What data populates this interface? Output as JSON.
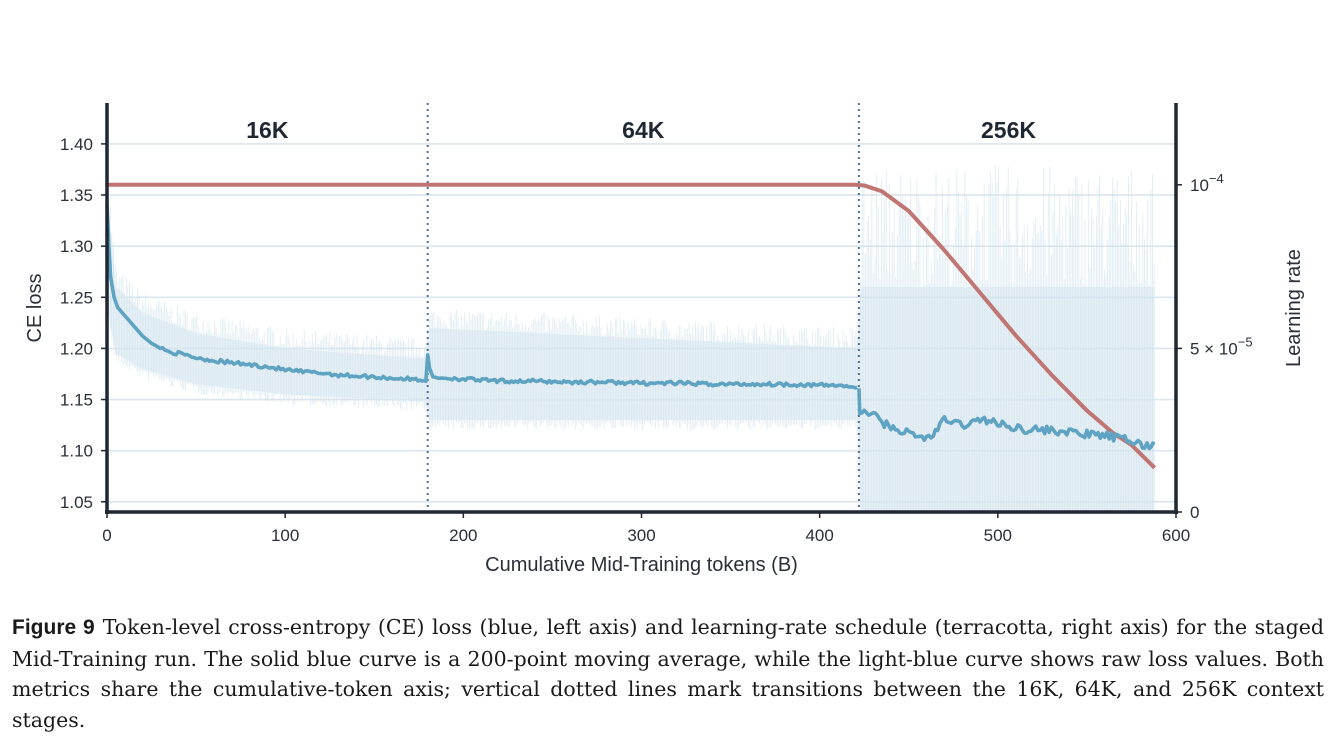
{
  "chart_data": {
    "type": "line",
    "xlabel": "Cumulative Mid-Training tokens (B)",
    "ylabel": "CE loss",
    "y2label": "Learning rate",
    "xlim": [
      0,
      600
    ],
    "ylim": [
      1.04,
      1.44
    ],
    "y2lim": [
      0,
      0.000125
    ],
    "x_ticks": [
      "0",
      "100",
      "200",
      "300",
      "400",
      "500",
      "600"
    ],
    "y_ticks": [
      "1.05",
      "1.10",
      "1.15",
      "1.20",
      "1.25",
      "1.30",
      "1.35",
      "1.40"
    ],
    "y2_ticks": [
      {
        "value": 0,
        "base": "0",
        "exp": ""
      },
      {
        "value": 5e-05,
        "base": "5 × 10",
        "exp": "−5"
      },
      {
        "value": 0.0001,
        "base": "10",
        "exp": "−4"
      }
    ],
    "grid": "horizontal",
    "stage_boundaries": [
      180,
      422
    ],
    "stages": [
      {
        "label": "16K",
        "center": 90
      },
      {
        "label": "64K",
        "center": 301
      },
      {
        "label": "256K",
        "center": 506
      }
    ],
    "series": [
      {
        "name": "CE loss (moving average)",
        "axis": "left",
        "color": "#5fa3c3",
        "points": [
          [
            0,
            1.34
          ],
          [
            1,
            1.3
          ],
          [
            2,
            1.27
          ],
          [
            4,
            1.25
          ],
          [
            6,
            1.24
          ],
          [
            10,
            1.232
          ],
          [
            15,
            1.222
          ],
          [
            20,
            1.212
          ],
          [
            25,
            1.205
          ],
          [
            30,
            1.2
          ],
          [
            35,
            1.197
          ],
          [
            40,
            1.195
          ],
          [
            50,
            1.191
          ],
          [
            60,
            1.188
          ],
          [
            70,
            1.186
          ],
          [
            80,
            1.184
          ],
          [
            90,
            1.182
          ],
          [
            100,
            1.179
          ],
          [
            110,
            1.177
          ],
          [
            120,
            1.176
          ],
          [
            130,
            1.174
          ],
          [
            140,
            1.173
          ],
          [
            150,
            1.172
          ],
          [
            160,
            1.171
          ],
          [
            170,
            1.17
          ],
          [
            179,
            1.169
          ],
          [
            180,
            1.192
          ],
          [
            181,
            1.18
          ],
          [
            183,
            1.172
          ],
          [
            190,
            1.171
          ],
          [
            200,
            1.17
          ],
          [
            220,
            1.168
          ],
          [
            240,
            1.168
          ],
          [
            260,
            1.167
          ],
          [
            280,
            1.167
          ],
          [
            300,
            1.166
          ],
          [
            320,
            1.166
          ],
          [
            340,
            1.165
          ],
          [
            360,
            1.165
          ],
          [
            380,
            1.165
          ],
          [
            400,
            1.164
          ],
          [
            410,
            1.164
          ],
          [
            420,
            1.162
          ],
          [
            422,
            1.16
          ],
          [
            422.5,
            1.135
          ],
          [
            425,
            1.14
          ],
          [
            430,
            1.135
          ],
          [
            435,
            1.128
          ],
          [
            440,
            1.123
          ],
          [
            445,
            1.12
          ],
          [
            450,
            1.117
          ],
          [
            455,
            1.114
          ],
          [
            460,
            1.112
          ],
          [
            465,
            1.118
          ],
          [
            470,
            1.13
          ],
          [
            475,
            1.128
          ],
          [
            480,
            1.125
          ],
          [
            485,
            1.127
          ],
          [
            490,
            1.13
          ],
          [
            495,
            1.13
          ],
          [
            500,
            1.126
          ],
          [
            505,
            1.124
          ],
          [
            510,
            1.123
          ],
          [
            515,
            1.121
          ],
          [
            520,
            1.121
          ],
          [
            525,
            1.12
          ],
          [
            530,
            1.12
          ],
          [
            535,
            1.119
          ],
          [
            540,
            1.118
          ],
          [
            545,
            1.117
          ],
          [
            550,
            1.116
          ],
          [
            555,
            1.115
          ],
          [
            560,
            1.115
          ],
          [
            565,
            1.113
          ],
          [
            570,
            1.111
          ],
          [
            575,
            1.11
          ],
          [
            580,
            1.106
          ],
          [
            585,
            1.104
          ],
          [
            588,
            1.106
          ]
        ]
      },
      {
        "name": "CE loss (raw)",
        "axis": "left",
        "color": "#dce9f1",
        "band": [
          {
            "x": 0,
            "low": 1.24,
            "high": 1.36
          },
          {
            "x": 5,
            "low": 1.195,
            "high": 1.26
          },
          {
            "x": 20,
            "low": 1.18,
            "high": 1.235
          },
          {
            "x": 50,
            "low": 1.165,
            "high": 1.215
          },
          {
            "x": 100,
            "low": 1.155,
            "high": 1.2
          },
          {
            "x": 179,
            "low": 1.148,
            "high": 1.19
          },
          {
            "x": 181,
            "low": 1.13,
            "high": 1.22
          },
          {
            "x": 300,
            "low": 1.13,
            "high": 1.21
          },
          {
            "x": 421,
            "low": 1.13,
            "high": 1.2
          },
          {
            "x": 423,
            "low": 1.04,
            "high": 1.26
          },
          {
            "x": 500,
            "low": 1.04,
            "high": 1.26
          },
          {
            "x": 588,
            "low": 1.04,
            "high": 1.26
          }
        ]
      },
      {
        "name": "Learning rate",
        "axis": "right",
        "color": "#c07572",
        "points": [
          [
            0,
            0.0001
          ],
          [
            420,
            0.0001
          ],
          [
            425,
            9.98e-05
          ],
          [
            435,
            9.8e-05
          ],
          [
            450,
            9.2e-05
          ],
          [
            470,
            8e-05
          ],
          [
            490,
            6.7e-05
          ],
          [
            510,
            5.4e-05
          ],
          [
            530,
            4.2e-05
          ],
          [
            550,
            3.1e-05
          ],
          [
            565,
            2.4e-05
          ],
          [
            575,
            2.05e-05
          ],
          [
            588,
            1.35e-05
          ]
        ]
      }
    ]
  },
  "caption": {
    "label": "Figure 9",
    "text": "Token-level cross-entropy (CE) loss (blue, left axis) and learning-rate schedule (terracotta, right axis) for the staged Mid-Training run. The solid blue curve is a 200-point moving average, while the light-blue curve shows raw loss values. Both metrics share the cumulative-token axis; vertical dotted lines mark transitions between the 16K, 64K, and 256K context stages."
  }
}
